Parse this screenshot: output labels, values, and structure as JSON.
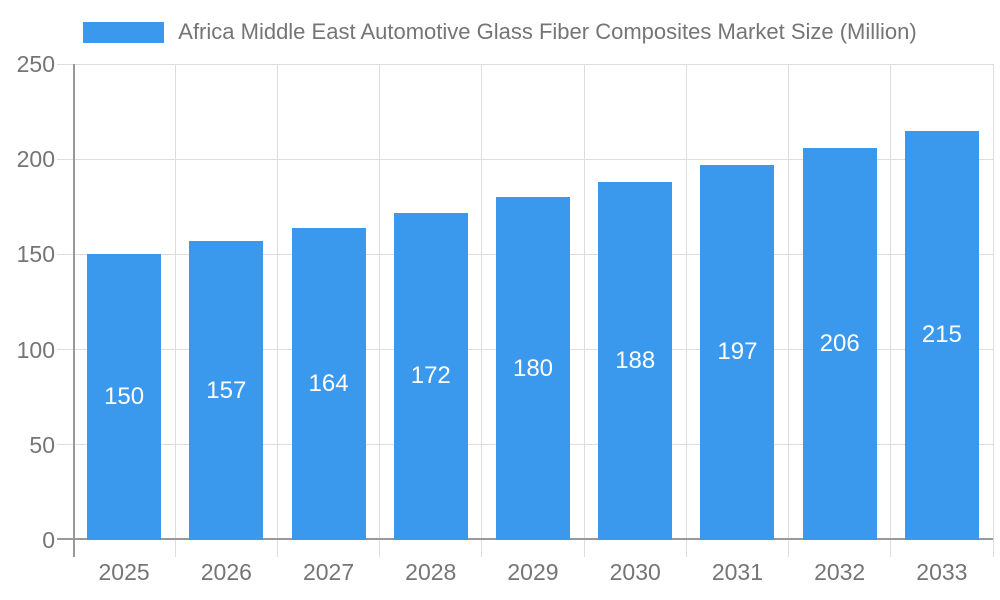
{
  "legend": {
    "label": "Africa Middle East Automotive Glass Fiber Composites Market Size (Million)"
  },
  "colors": {
    "bar": "#3A99EC",
    "axis_text": "#757575",
    "grid_line": "#DDDDDD",
    "axis_line": "#999999",
    "bar_label_text": "#FFFFFF",
    "background": "#FFFFFF"
  },
  "chart_data": {
    "type": "bar",
    "title": "Africa Middle East Automotive Glass Fiber Composites Market Size (Million)",
    "categories": [
      "2025",
      "2026",
      "2027",
      "2028",
      "2029",
      "2030",
      "2031",
      "2032",
      "2033"
    ],
    "values": [
      150,
      157,
      164,
      172,
      180,
      188,
      197,
      206,
      215
    ],
    "xlabel": "",
    "ylabel": "",
    "ylim": [
      0,
      250
    ],
    "ytick_step": 50,
    "yticks": [
      0,
      50,
      100,
      150,
      200,
      250
    ],
    "grid": true,
    "legend_position": "top",
    "data_labels_position": "inside-center"
  }
}
